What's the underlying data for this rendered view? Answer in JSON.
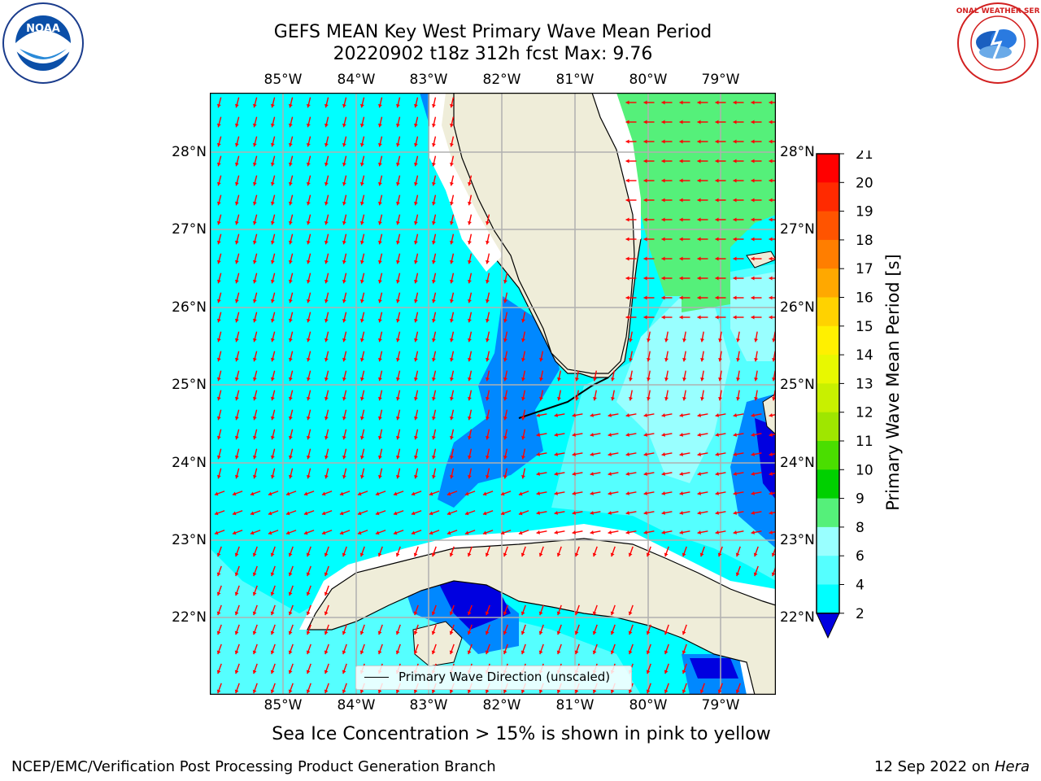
{
  "title": {
    "line1": "GEFS MEAN Key West Primary Wave Mean Period",
    "line2": "20220902 t18z 312h fcst   Max: 9.76"
  },
  "axes": {
    "longitude_labels": [
      "85°W",
      "84°W",
      "83°W",
      "82°W",
      "81°W",
      "80°W",
      "79°W"
    ],
    "latitude_labels": [
      "28°N",
      "27°N",
      "26°N",
      "25°N",
      "24°N",
      "23°N",
      "22°N"
    ],
    "lon_range": [
      -86.0,
      -78.25
    ],
    "lat_range": [
      21.05,
      28.75
    ]
  },
  "colorbar": {
    "label": "Primary Wave Mean Period [s]",
    "ticks": [
      "21",
      "20",
      "19",
      "18",
      "17",
      "16",
      "15",
      "14",
      "13",
      "12",
      "11",
      "10",
      "9",
      "8",
      "6",
      "4",
      "2"
    ],
    "colors": [
      "#ff0000",
      "#ff2a00",
      "#ff5400",
      "#ff7e00",
      "#ffa800",
      "#ffd200",
      "#fff000",
      "#e8f800",
      "#c8f000",
      "#9fe600",
      "#4ade00",
      "#00d000",
      "#55f07a",
      "#99ffff",
      "#55ffff",
      "#00ffff",
      "#0088ff",
      "#0000e0"
    ]
  },
  "legend": {
    "text": "Primary Wave Direction (unscaled)"
  },
  "ice_note": "Sea Ice Concentration > 15% is shown in pink to yellow",
  "footer": {
    "left": "NCEP/EMC/Verification Post Processing Product Generation Branch",
    "right_date": "12 Sep 2022 on ",
    "right_machine": "Hera"
  },
  "logos": {
    "left": "NOAA",
    "right": "NATIONAL WEATHER SERVICE"
  },
  "map": {
    "land_color": "#efedd9",
    "ocean_base_color": "#00ffff",
    "arrow_color": "#ff0000",
    "grid_color": "#b0b0b0"
  }
}
